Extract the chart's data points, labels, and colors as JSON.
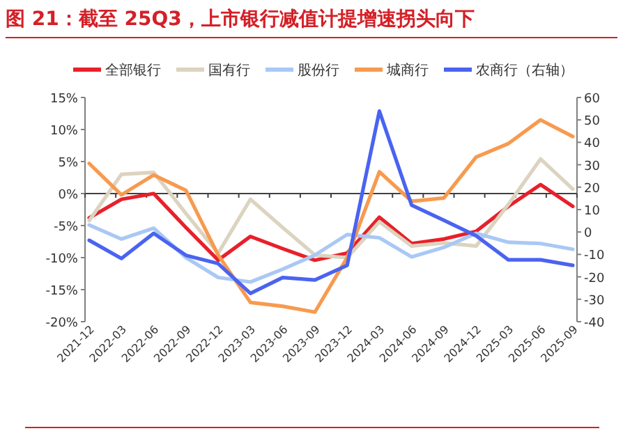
{
  "chart_data": {
    "type": "line",
    "title": "图 21：截至 25Q3，上市银行减值计提增速拐头向下",
    "categories": [
      "2021-12",
      "2022-03",
      "2022-06",
      "2022-09",
      "2022-12",
      "2023-03",
      "2023-06",
      "2023-09",
      "2023-12",
      "2024-03",
      "2024-06",
      "2024-09",
      "2024-12",
      "2025-03",
      "2025-06",
      "2025-09"
    ],
    "series": [
      {
        "name": "全部银行",
        "color": "#e8202a",
        "values": [
          -3.8,
          -0.9,
          0,
          -5.3,
          -10.4,
          -6.7,
          -8.6,
          -10.4,
          -9.3,
          -3.7,
          -7.8,
          -7.1,
          -5.9,
          -2.0,
          1.4,
          -2.0
        ]
      },
      {
        "name": "国有行",
        "color": "#dcd3c0",
        "values": [
          -4.2,
          3.0,
          3.3,
          -3.1,
          -9.3,
          -0.9,
          -5.3,
          -9.6,
          -10.0,
          -4.4,
          -8.2,
          -7.7,
          -8.2,
          -1.7,
          5.4,
          0.7
        ]
      },
      {
        "name": "股份行",
        "color": "#a9c8f5",
        "values": [
          -4.9,
          -7.1,
          -5.4,
          -10.0,
          -13.1,
          -13.8,
          -11.8,
          -9.6,
          -6.4,
          -6.9,
          -9.9,
          -8.4,
          -6.2,
          -7.6,
          -7.8,
          -8.7
        ]
      },
      {
        "name": "城商行",
        "color": "#f79a4f",
        "values": [
          4.7,
          -0.2,
          2.9,
          0.5,
          -9.6,
          -17.0,
          -17.6,
          -18.5,
          -10.0,
          3.4,
          -1.2,
          -0.7,
          5.7,
          7.8,
          11.5,
          8.9
        ]
      },
      {
        "name": "农商行（右轴）",
        "color": "#4a63f0",
        "axis": "y2",
        "values": [
          -3.7,
          -11.8,
          -0.6,
          -10.4,
          -14.1,
          -27.4,
          -20.3,
          -21.4,
          -14.9,
          53.9,
          12.0,
          5.2,
          -1.7,
          -12.4,
          -12.4,
          -14.9
        ]
      }
    ],
    "ylim": [
      -20,
      15
    ],
    "yticks": [
      {
        "value": -20,
        "label": "-20%"
      },
      {
        "value": -15,
        "label": "-15%"
      },
      {
        "value": -10,
        "label": "-10%"
      },
      {
        "value": -5,
        "label": "-5%"
      },
      {
        "value": 0,
        "label": "0%"
      },
      {
        "value": 5,
        "label": "5%"
      },
      {
        "value": 10,
        "label": "10%"
      },
      {
        "value": 15,
        "label": "15%"
      }
    ],
    "y2lim": [
      -40,
      60
    ],
    "y2ticks": [
      -40,
      -30,
      -20,
      -10,
      0,
      10,
      20,
      30,
      40,
      50,
      60
    ],
    "ref_lines": [
      {
        "axis": "y",
        "value": 0,
        "color": "#404040"
      }
    ],
    "legend": "top",
    "grid": false,
    "marker": "none",
    "line_style": "solid"
  }
}
